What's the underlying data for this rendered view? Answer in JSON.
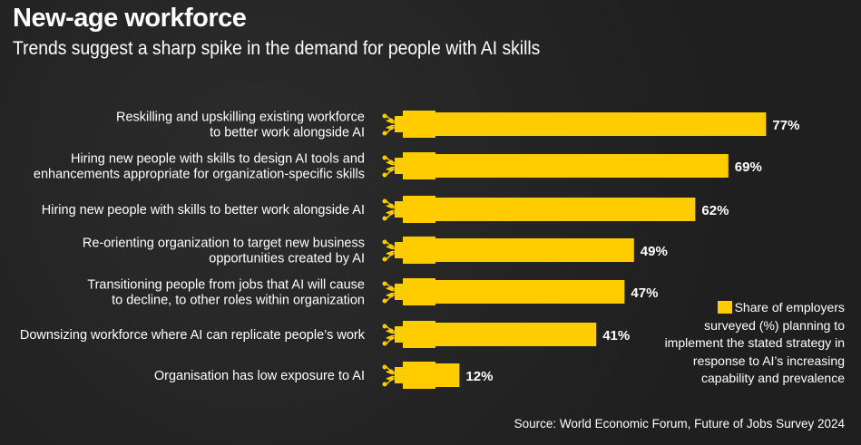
{
  "title": "New-age workforce",
  "subtitle": "Trends suggest a sharp spike in the demand for people with AI skills",
  "legend": "Share of employers surveyed (%) planning to implement the stated strategy in response to AI’s increasing capability and prevalence",
  "source": "Source: World Economic Forum, Future of Jobs Survey 2024",
  "colors": {
    "bar": "#ffcc00",
    "background": "#232323"
  },
  "chart_data": {
    "type": "bar",
    "orientation": "horizontal",
    "categories": [
      [
        "Reskilling and upskilling existing workforce",
        "to better work alongside AI"
      ],
      [
        "Hiring new people with skills to design AI tools and",
        "enhancements appropriate for organization-specific skills"
      ],
      [
        "Hiring new people with skills to better work alongside AI"
      ],
      [
        "Re-orienting organization to target new business",
        "opportunities created by AI"
      ],
      [
        "Transitioning people from jobs that AI will cause",
        "to decline, to other roles within organization"
      ],
      [
        "Downsizing workforce where AI can replicate people’s work"
      ],
      [
        "Organisation has low exposure to AI"
      ]
    ],
    "values": [
      77,
      69,
      62,
      49,
      47,
      41,
      12
    ],
    "data_labels": [
      "77%",
      "69%",
      "62%",
      "49%",
      "47%",
      "41%",
      "12%"
    ],
    "unit": "%",
    "xlim": [
      0,
      100
    ],
    "grid": false
  }
}
